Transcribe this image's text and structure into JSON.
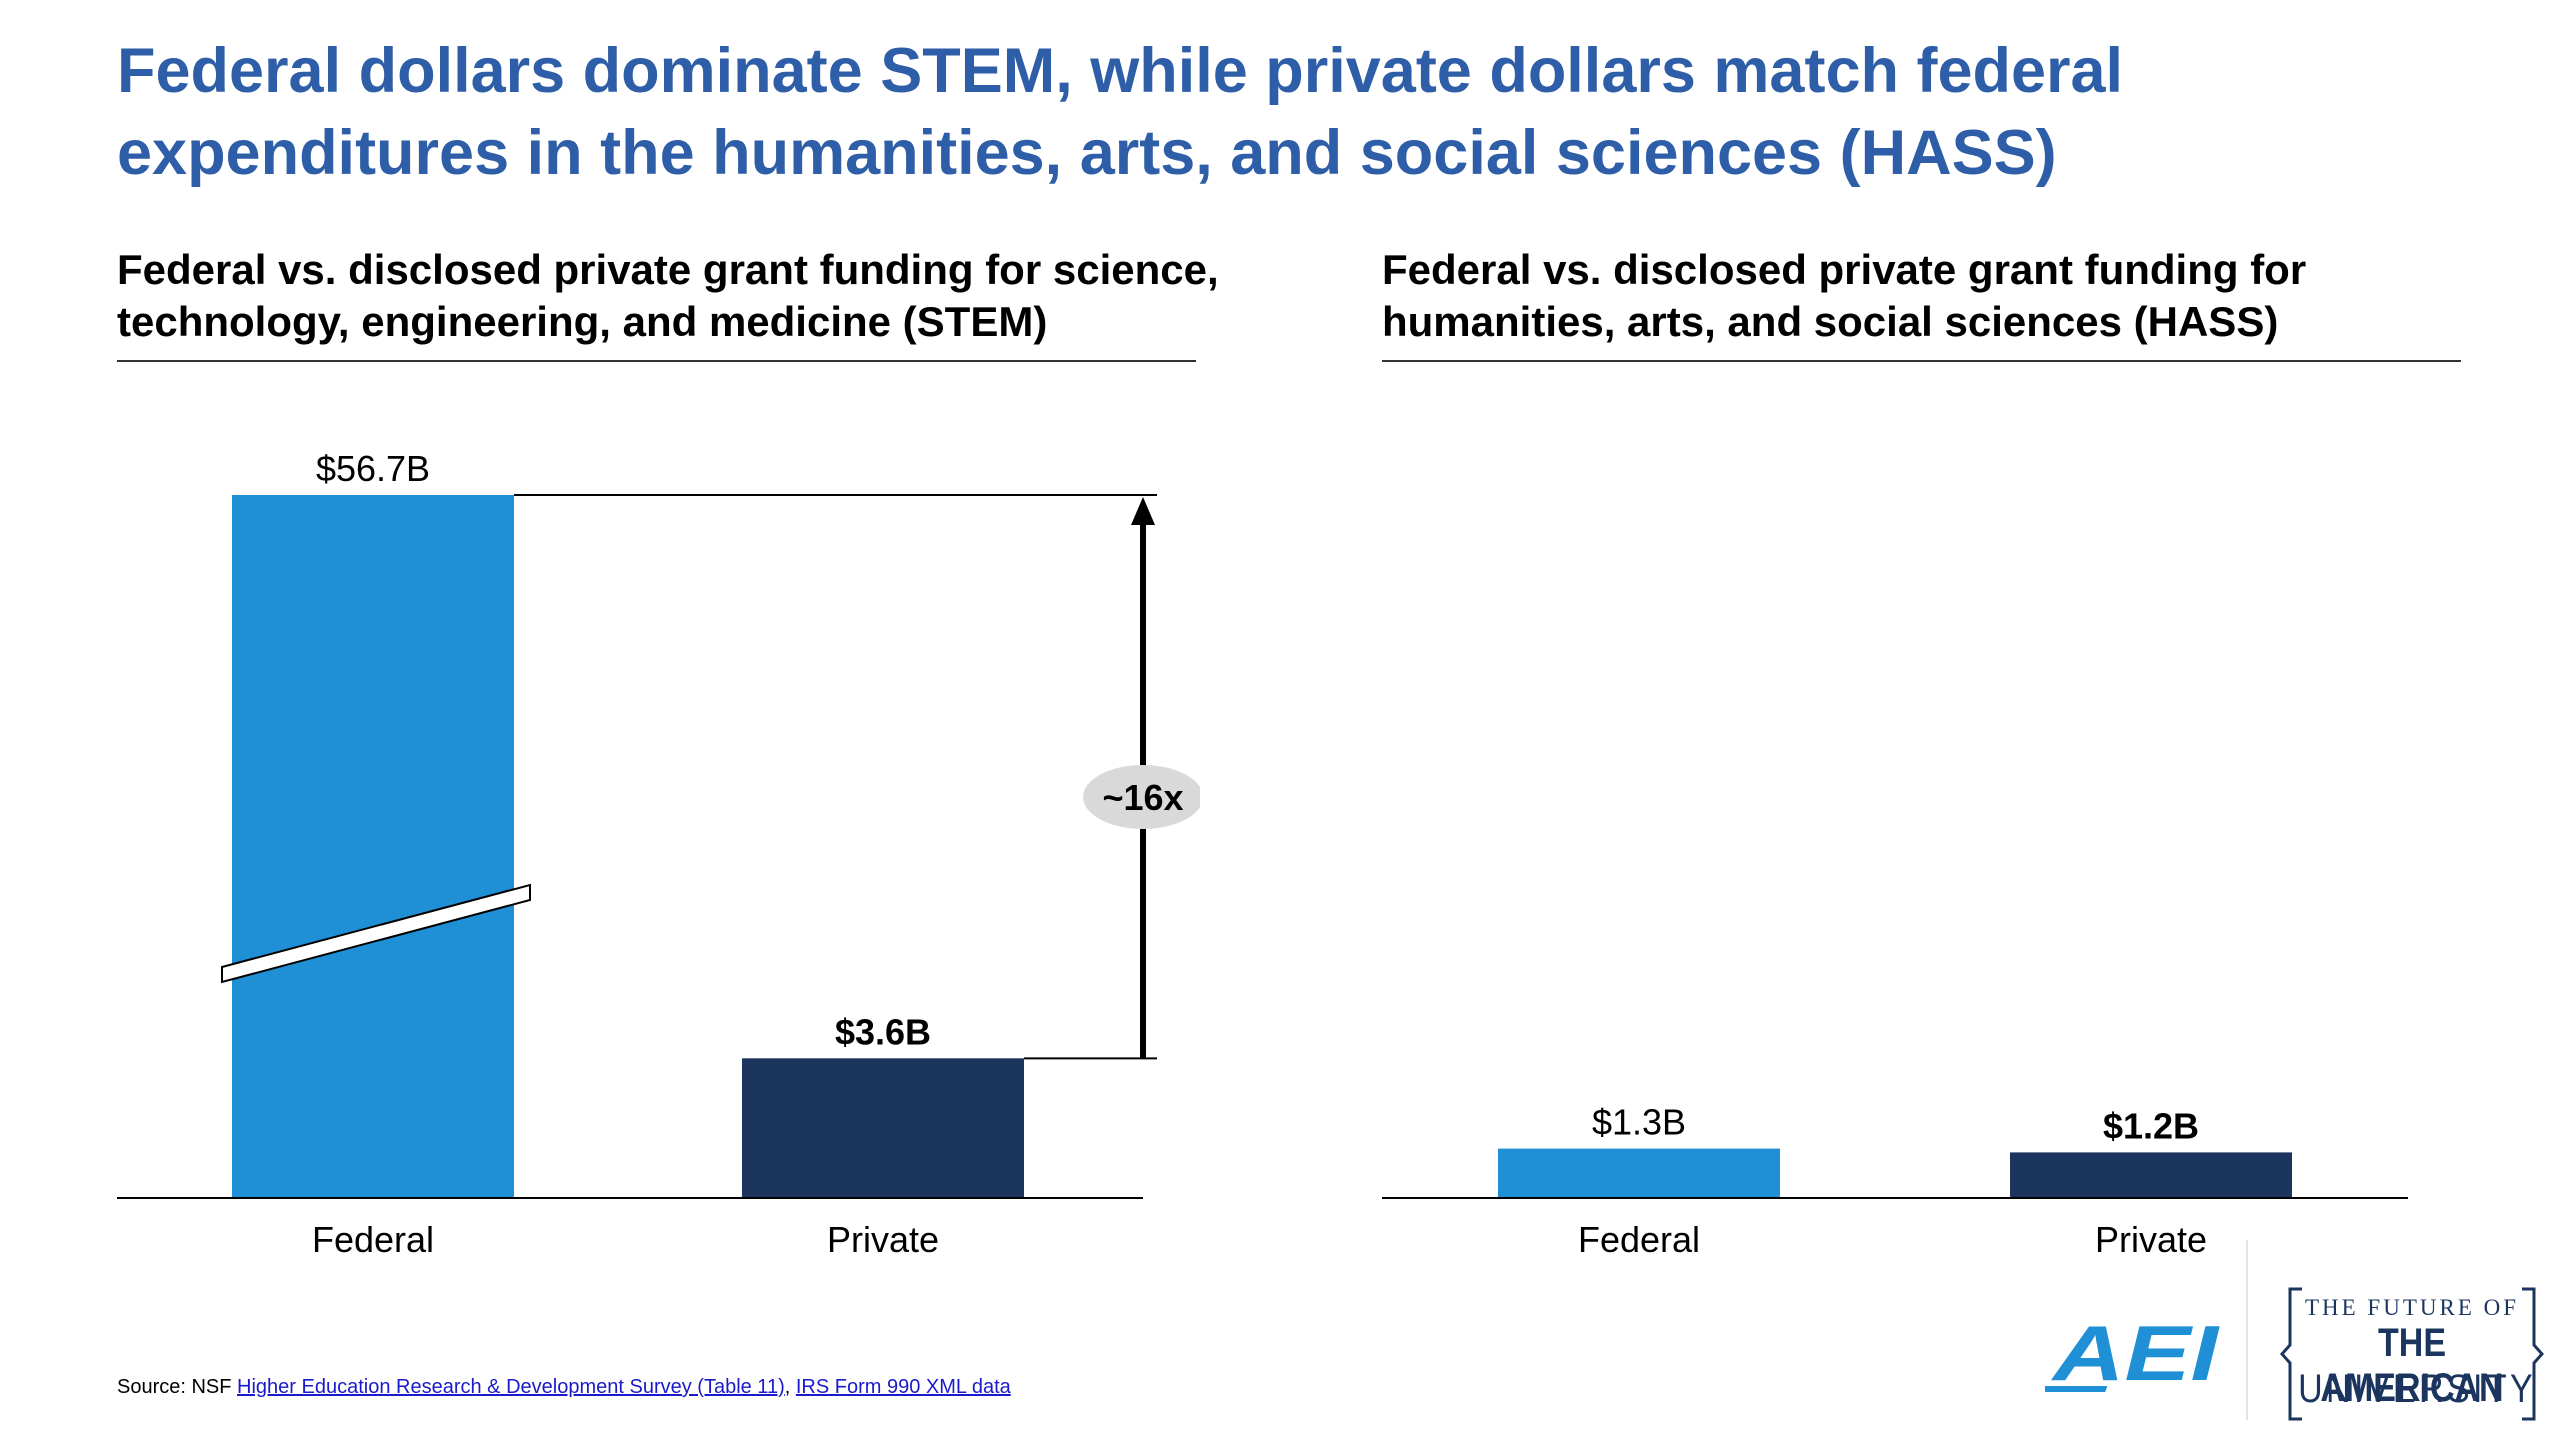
{
  "title": "Federal dollars dominate STEM, while private dollars match federal\nexpenditures in the humanities, arts, and social sciences (HASS)",
  "colors": {
    "title": "#2e5ea8",
    "federal": "#1f8fd6",
    "private": "#1c355e",
    "badge": "#d9d9d9"
  },
  "chart_data": [
    {
      "type": "bar",
      "title": "Federal vs. disclosed private grant funding for science,\ntechnology, engineering, and medicine (STEM)",
      "categories": [
        "Federal",
        "Private"
      ],
      "values": [
        56.7,
        3.6
      ],
      "data_labels": [
        "$56.7B",
        "$3.6B"
      ],
      "value_unit": "$B",
      "axis_break_on": "Federal",
      "annotation": "~16x",
      "grid": false
    },
    {
      "type": "bar",
      "title": "Federal vs. disclosed private grant funding for\nhumanities, arts, and social sciences (HASS)",
      "categories": [
        "Federal",
        "Private"
      ],
      "values": [
        1.3,
        1.2
      ],
      "data_labels": [
        "$1.3B",
        "$1.2B"
      ],
      "value_unit": "$B",
      "grid": false
    }
  ],
  "source": {
    "prefix": "Source: NSF ",
    "link1": "Higher Education Research & Development Survey (Table 11)",
    "separator": ", ",
    "link2": "IRS Form 990 XML data"
  },
  "logos": {
    "aei": "AEI",
    "tfau": [
      "THE FUTURE OF",
      "THE AMERICAN",
      "UNIVERSITY"
    ]
  }
}
